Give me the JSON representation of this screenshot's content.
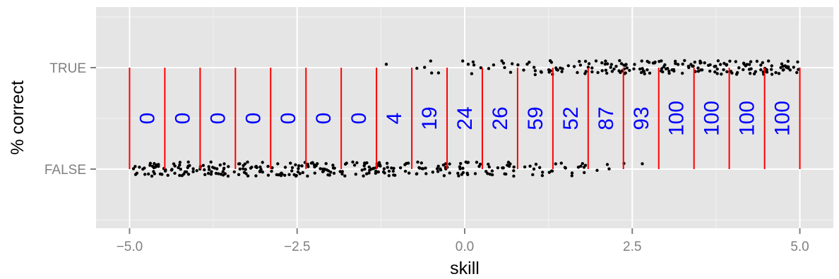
{
  "chart_data": {
    "type": "scatter",
    "title": "",
    "xlabel": "skill",
    "ylabel": "% correct",
    "xlim": [
      -5.5,
      5.5
    ],
    "x_ticks": [
      -5.0,
      -2.5,
      0.0,
      2.5,
      5.0
    ],
    "x_tick_labels": [
      "−5.0",
      "−2.5",
      "0.0",
      "2.5",
      "5.0"
    ],
    "y_categories": [
      "FALSE",
      "TRUE"
    ],
    "grid": true,
    "background": "#e5e5e5",
    "point_color": "#000000",
    "bin_line_color": "#ff0000",
    "label_color": "#0000ff",
    "bin_edges": [
      -5.0,
      -4.474,
      -3.947,
      -3.421,
      -2.895,
      -2.368,
      -1.842,
      -1.316,
      -0.789,
      -0.263,
      0.263,
      0.789,
      1.316,
      1.842,
      2.368,
      2.895,
      3.421,
      3.947,
      4.474,
      5.0
    ],
    "bin_percent_correct": [
      0,
      0,
      0,
      0,
      0,
      0,
      0,
      4,
      19,
      24,
      26,
      59,
      52,
      87,
      93,
      100,
      100,
      100,
      100
    ],
    "bin_percent_labels": [
      "0",
      "0",
      "0",
      "0",
      "0",
      "0",
      "0",
      "4",
      "19",
      "24",
      "26",
      "59",
      "52",
      "87",
      "93",
      "100",
      "100",
      "100",
      "100"
    ],
    "points_per_bin": 26,
    "jitter_height_fraction_of_band": 0.07
  }
}
